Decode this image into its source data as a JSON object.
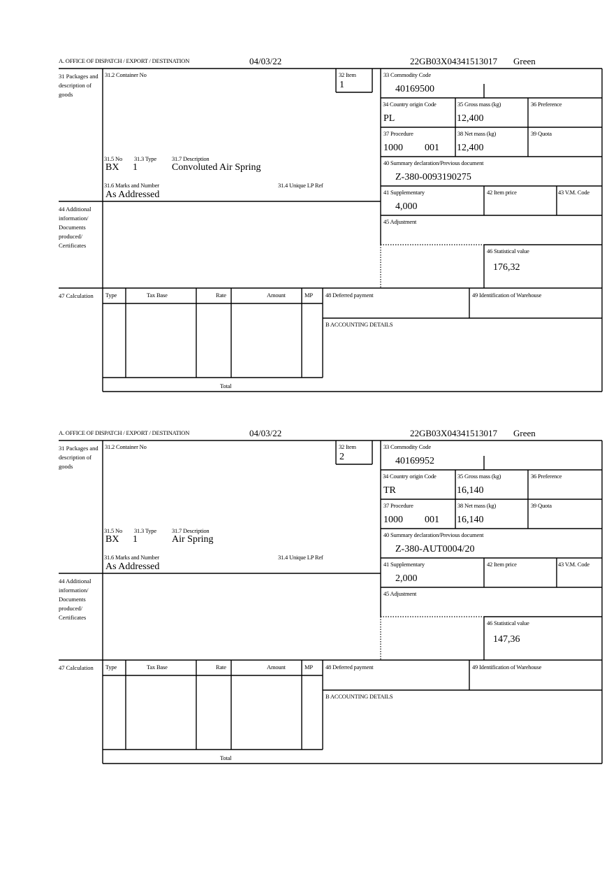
{
  "labels": {
    "office": "A. OFFICE OF DISPATCH / EXPORT / DESTINATION",
    "packages": "31 Packages and description of goods",
    "container_no": "31.2 Container No",
    "item": "32 Item",
    "no": "31.5 No",
    "type": "31.3 Type",
    "description": "31.7 Description",
    "marks": "31.6 Marks and Number",
    "unique_lp_ref": "31.4 Unique LP Ref",
    "commodity_code": "33 Commodity Code",
    "country_origin": "34 Country origin Code",
    "gross_mass": "35 Gross mass (kg)",
    "preference": "36 Preference",
    "procedure": "37 Procedure",
    "net_mass": "38 Net mass (kg)",
    "quota": "39 Quota",
    "summary_decl": "40 Summary declaration/Previous document",
    "supplementary": "41 Supplementary",
    "item_price": "42 Item price",
    "vm_code": "43 V.M. Code",
    "additional_info": "44 Additional information/ Documents produced/ Certificates",
    "adjustment": "45 Adjustment",
    "statistical_value": "46 Statistical value",
    "calculation": "47 Calculation",
    "calc_type": "Type",
    "calc_tax_base": "Tax Base",
    "calc_rate": "Rate",
    "calc_amount": "Amount",
    "calc_mp": "MP",
    "calc_total": "Total",
    "deferred_payment": "48 Deferred payment",
    "warehouse": "49 Identification of Warehouse",
    "accounting": "B ACCOUNTING DETAILS"
  },
  "forms": [
    {
      "date": "04/03/22",
      "reference": "22GB03X04341513017",
      "route": "Green",
      "item": "1",
      "no": "BX",
      "type": "1",
      "description": "Convoluted Air Spring",
      "marks": "As Addressed",
      "commodity_code": "40169500",
      "country_origin": "PL",
      "gross_mass": "12,400",
      "procedure": "1000",
      "procedure_extra": "001",
      "net_mass": "12,400",
      "summary_decl": "Z-380-0093190275",
      "supplementary": "4,000",
      "statistical_value": "176,32"
    },
    {
      "date": "04/03/22",
      "reference": "22GB03X04341513017",
      "route": "Green",
      "item": "2",
      "no": "BX",
      "type": "1",
      "description": "Air Spring",
      "marks": "As Addressed",
      "commodity_code": "40169952",
      "country_origin": "TR",
      "gross_mass": "16,140",
      "procedure": "1000",
      "procedure_extra": "001",
      "net_mass": "16,140",
      "summary_decl": "Z-380-AUT0004/20",
      "supplementary": "2,000",
      "statistical_value": "147,36"
    }
  ]
}
